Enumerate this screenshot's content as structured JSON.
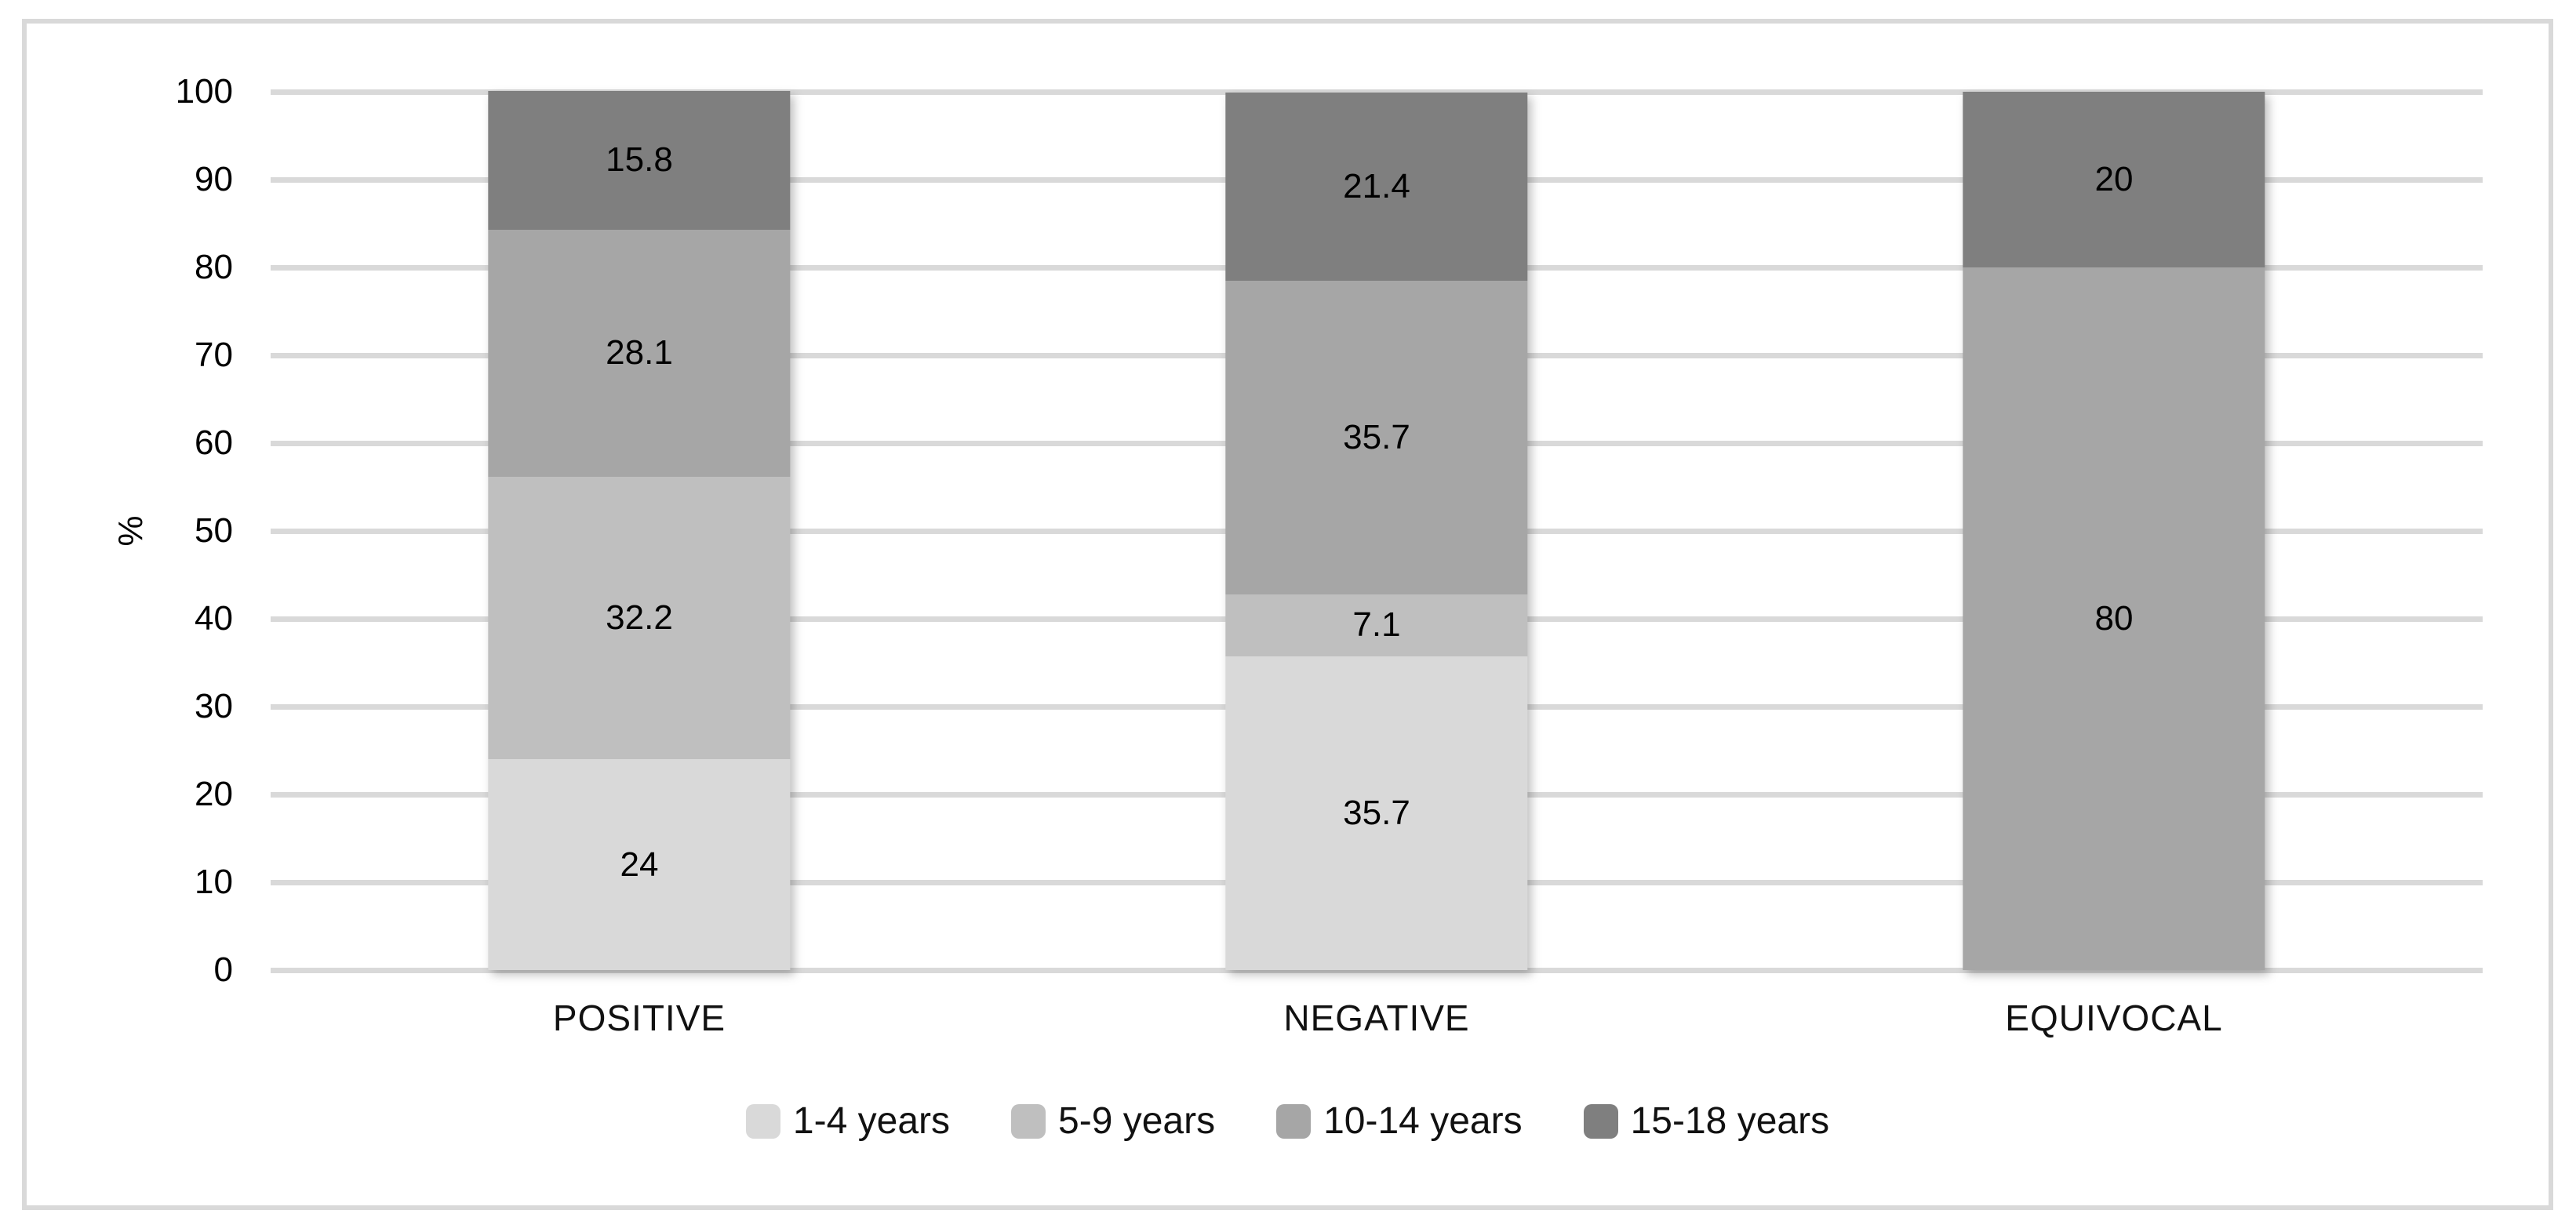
{
  "chart_data": {
    "type": "bar",
    "stacked": true,
    "title": "",
    "xlabel": "",
    "ylabel": "%",
    "ylim": [
      0,
      100
    ],
    "grid": true,
    "legend_position": "bottom",
    "y_ticks": [
      100,
      90,
      80,
      70,
      60,
      50,
      40,
      30,
      20,
      10,
      0
    ],
    "categories": [
      "POSITIVE",
      "NEGATIVE",
      "EQUIVOCAL"
    ],
    "series": [
      {
        "name": "1-4 years",
        "color": "#d9d9d9",
        "values": [
          24,
          35.7,
          0
        ],
        "labels": [
          "24",
          "35.7",
          ""
        ]
      },
      {
        "name": "5-9 years",
        "color": "#bfbfbf",
        "values": [
          32.2,
          7.1,
          0
        ],
        "labels": [
          "32.2",
          "7.1",
          ""
        ]
      },
      {
        "name": "10-14 years",
        "color": "#a6a6a6",
        "values": [
          28.1,
          35.7,
          80
        ],
        "labels": [
          "28.1",
          "35.7",
          "80"
        ]
      },
      {
        "name": "15-18 years",
        "color": "#7f7f7f",
        "values": [
          15.8,
          21.4,
          20
        ],
        "labels": [
          "15.8",
          "21.4",
          "20"
        ]
      }
    ],
    "colors": {
      "gridline": "#d9d9d9",
      "frame_border": "#d9d9d9",
      "text": "#000000"
    }
  }
}
